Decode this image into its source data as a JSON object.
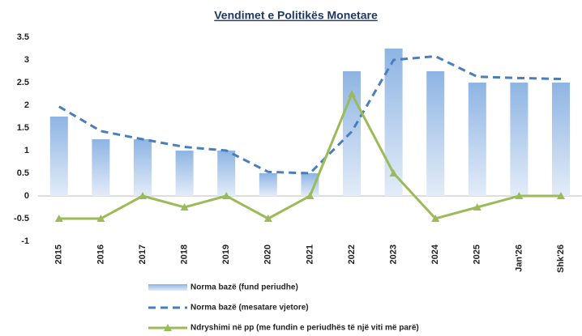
{
  "chart_data": {
    "type": "bar_line",
    "title": "Vendimet e Politikës Monetare",
    "categories": [
      "2015",
      "2016",
      "2017",
      "2018",
      "2019",
      "2020",
      "2021",
      "2022",
      "2023",
      "2024",
      "2025",
      "Jan'26",
      "Shk'26"
    ],
    "series": [
      {
        "name": "Norma bazë (fund periudhe)",
        "type": "bar",
        "color": "#8eb4e3",
        "values": [
          1.75,
          1.25,
          1.25,
          1.0,
          1.0,
          0.5,
          0.5,
          2.75,
          3.25,
          2.75,
          2.5,
          2.5,
          2.5
        ]
      },
      {
        "name": "Norma bazë (mesatare vjetore)",
        "type": "dashed_line",
        "color": "#4a7ebb",
        "values": [
          1.97,
          1.43,
          1.25,
          1.08,
          1.0,
          0.53,
          0.5,
          1.42,
          3.0,
          3.08,
          2.63,
          2.6,
          2.58
        ]
      },
      {
        "name": "Ndryshimi në pp (me fundin e periudhës të një viti më parë)",
        "type": "marker_line",
        "color": "#9bbb59",
        "values": [
          -0.5,
          -0.5,
          0,
          -0.25,
          0,
          -0.5,
          0,
          2.25,
          0.5,
          -0.5,
          -0.25,
          0,
          0
        ]
      }
    ],
    "ylim": [
      -1,
      3.5
    ],
    "yticks": [
      -1,
      -0.5,
      0,
      0.5,
      1,
      1.5,
      2,
      2.5,
      3,
      3.5
    ]
  }
}
